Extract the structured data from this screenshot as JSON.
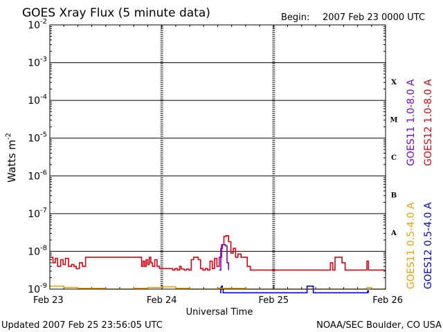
{
  "header": {
    "title": "GOES Xray Flux (5 minute data)",
    "begin_label": "Begin:",
    "begin_value": "2007 Feb 23 0000 UTC"
  },
  "footer": {
    "updated": "Updated 2007 Feb 25 23:56:05 UTC",
    "credit": "NOAA/SEC Boulder, CO USA"
  },
  "colors": {
    "goes12_long": "#e0000f",
    "goes11_long": "#7f00d0",
    "goes12_short": "#0000e0",
    "goes11_short": "#f0a000",
    "grid": "#000000"
  },
  "chart_data": {
    "type": "line",
    "title": "GOES Xray Flux (5 minute data)",
    "xlabel": "Universal Time",
    "ylabel": "Watts m",
    "ylabel_exp": "-2",
    "yscale": "log",
    "ylim": [
      1e-09,
      0.01
    ],
    "xlim": [
      "2007-02-23",
      "2007-02-26"
    ],
    "x_ticks": [
      {
        "label": "Feb 23",
        "date": "2007-02-23"
      },
      {
        "label": "Feb 24",
        "date": "2007-02-24"
      },
      {
        "label": "Feb 25",
        "date": "2007-02-25"
      },
      {
        "label": "Feb 26",
        "date": "2007-02-26"
      }
    ],
    "y_ticks": [
      {
        "base": "10",
        "exp": "-2",
        "value": 0.01
      },
      {
        "base": "10",
        "exp": "-3",
        "value": 0.001
      },
      {
        "base": "10",
        "exp": "-4",
        "value": 0.0001
      },
      {
        "base": "10",
        "exp": "-5",
        "value": 1e-05
      },
      {
        "base": "10",
        "exp": "-6",
        "value": 1e-06
      },
      {
        "base": "10",
        "exp": "-7",
        "value": 1e-07
      },
      {
        "base": "10",
        "exp": "-8",
        "value": 1e-08
      },
      {
        "base": "10",
        "exp": "-9",
        "value": 1e-09
      }
    ],
    "flare_classes": [
      {
        "label": "X",
        "value": 0.000316
      },
      {
        "label": "M",
        "value": 3.16e-05
      },
      {
        "label": "C",
        "value": 3.16e-06
      },
      {
        "label": "B",
        "value": 3.16e-07
      },
      {
        "label": "A",
        "value": 3.16e-08
      }
    ],
    "grid": true,
    "series": [
      {
        "name": "GOES12 1.0-8.0 A",
        "color": "#e0000f",
        "x": [
          "2007-02-23 00:00",
          "2007-02-23 00:40",
          "2007-02-23 01:10",
          "2007-02-23 01:40",
          "2007-02-23 02:20",
          "2007-02-23 02:50",
          "2007-02-23 03:20",
          "2007-02-23 04:00",
          "2007-02-23 04:40",
          "2007-02-23 05:10",
          "2007-02-23 05:40",
          "2007-02-23 06:20",
          "2007-02-23 07:00",
          "2007-02-23 07:40",
          "2007-02-23 08:20",
          "2007-02-23 09:00",
          "2007-02-23 09:50",
          "2007-02-23 10:30",
          "2007-02-23 11:10",
          "2007-02-23 12:00",
          "2007-02-23 12:30",
          "2007-02-23 13:10",
          "2007-02-23 14:00",
          "2007-02-23 15:00",
          "2007-02-23 16:00",
          "2007-02-23 17:00",
          "2007-02-23 18:00",
          "2007-02-23 19:00",
          "2007-02-23 19:40",
          "2007-02-23 20:00",
          "2007-02-23 20:20",
          "2007-02-23 20:40",
          "2007-02-23 21:00",
          "2007-02-23 21:20",
          "2007-02-23 21:40",
          "2007-02-23 22:00",
          "2007-02-23 22:30",
          "2007-02-23 23:00",
          "2007-02-23 23:30",
          "2007-02-24 00:30",
          "2007-02-24 01:10",
          "2007-02-24 01:40",
          "2007-02-24 02:20",
          "2007-02-24 02:50",
          "2007-02-24 03:20",
          "2007-02-24 03:50",
          "2007-02-24 04:10",
          "2007-02-24 04:50",
          "2007-02-24 05:20",
          "2007-02-24 05:50",
          "2007-02-24 06:20",
          "2007-02-24 06:50",
          "2007-02-24 07:20",
          "2007-02-24 07:50",
          "2007-02-24 08:20",
          "2007-02-24 08:50",
          "2007-02-24 09:20",
          "2007-02-24 09:50",
          "2007-02-24 10:20",
          "2007-02-24 10:50",
          "2007-02-24 11:20",
          "2007-02-24 11:50",
          "2007-02-24 12:20",
          "2007-02-24 12:50",
          "2007-02-24 13:20",
          "2007-02-24 13:50",
          "2007-02-24 14:20",
          "2007-02-24 14:50",
          "2007-02-24 15:20",
          "2007-02-24 15:50",
          "2007-02-24 16:20",
          "2007-02-24 17:00",
          "2007-02-24 17:40",
          "2007-02-24 18:20",
          "2007-02-24 19:00",
          "2007-02-24 19:40",
          "2007-02-24 20:20",
          "2007-02-24 21:00",
          "2007-02-24 21:40",
          "2007-02-24 22:20",
          "2007-02-24 23:00",
          "2007-02-24 23:40",
          "2007-02-25 00:20",
          "2007-02-25 01:00",
          "2007-02-25 02:00",
          "2007-02-25 03:00",
          "2007-02-25 04:00",
          "2007-02-25 05:00",
          "2007-02-25 06:00",
          "2007-02-25 07:00",
          "2007-02-25 08:00",
          "2007-02-25 09:00",
          "2007-02-25 10:00",
          "2007-02-25 10:40",
          "2007-02-25 11:10",
          "2007-02-25 11:40",
          "2007-02-25 12:10",
          "2007-02-25 12:40",
          "2007-02-25 13:10",
          "2007-02-25 13:40",
          "2007-02-25 14:10",
          "2007-02-25 14:40",
          "2007-02-25 15:20",
          "2007-02-25 16:00",
          "2007-02-25 17:00",
          "2007-02-25 18:00",
          "2007-02-25 19:00",
          "2007-02-25 19:40",
          "2007-02-25 20:00",
          "2007-02-25 20:20",
          "2007-02-25 21:00",
          "2007-02-25 22:00",
          "2007-02-25 23:00",
          "2007-02-25 23:55"
        ],
        "values": [
          7e-09,
          5e-09,
          6.5e-09,
          4e-09,
          6e-09,
          4.5e-09,
          6.5e-09,
          4e-09,
          4.5e-09,
          4e-09,
          3.5e-09,
          5e-09,
          4e-09,
          7e-09,
          7e-09,
          7e-09,
          7e-09,
          7e-09,
          7e-09,
          7e-09,
          7e-09,
          7e-09,
          7e-09,
          7e-09,
          7e-09,
          7e-09,
          7e-09,
          7e-09,
          4e-09,
          5.5e-09,
          4e-09,
          6e-09,
          4.5e-09,
          7e-09,
          5e-09,
          4e-09,
          6e-09,
          4e-09,
          3.5e-09,
          3.5e-09,
          3.5e-09,
          3.5e-09,
          3.2e-09,
          3.5e-09,
          3.2e-09,
          4e-09,
          3.4e-09,
          3.2e-09,
          3.4e-09,
          3.2e-09,
          6e-09,
          7e-09,
          7e-09,
          6e-09,
          3.5e-09,
          3.2e-09,
          3.5e-09,
          3.2e-09,
          5.5e-09,
          3.5e-09,
          6.5e-09,
          4e-09,
          7e-09,
          1.5e-08,
          2.5e-08,
          2.6e-08,
          1.8e-08,
          9e-09,
          1.2e-08,
          7e-09,
          8.5e-09,
          7e-09,
          7e-09,
          4e-09,
          3.2e-09,
          3.2e-09,
          3.2e-09,
          3.2e-09,
          3.2e-09,
          3.2e-09,
          3.2e-09,
          3.2e-09,
          3.2e-09,
          3.2e-09,
          3.2e-09,
          3.2e-09,
          3.2e-09,
          3.2e-09,
          3.2e-09,
          3.2e-09,
          3.2e-09,
          3.2e-09,
          3.2e-09,
          3.2e-09,
          3.2e-09,
          3.2e-09,
          5e-09,
          3.2e-09,
          7e-09,
          7e-09,
          7e-09,
          5e-09,
          3.2e-09,
          3.2e-09,
          3.2e-09,
          3.2e-09,
          3.2e-09,
          3.2e-09,
          5.5e-09,
          3.2e-09,
          3.2e-09,
          3.2e-09,
          3.2e-09,
          3.2e-09
        ]
      },
      {
        "name": "GOES11 1.0-8.0 A",
        "color": "#7f00d0",
        "x": [
          "2007-02-24 12:20",
          "2007-02-24 12:40",
          "2007-02-24 13:00",
          "2007-02-24 13:20",
          "2007-02-24 13:40",
          "2007-02-24 14:00",
          "2007-02-24 14:20"
        ],
        "values": [
          3.2e-09,
          1.2e-08,
          1.5e-08,
          1.5e-08,
          1.4e-08,
          5e-09,
          3.2e-09
        ]
      },
      {
        "name": "GOES12 0.5-4.0 A",
        "color": "#0000e0",
        "x": [
          "2007-02-24 12:30",
          "2007-02-24 12:40",
          "2007-02-24 12:50",
          "2007-02-24 13:00",
          "2007-02-24 13:10",
          "2007-02-25 07:00",
          "2007-02-25 07:10",
          "2007-02-25 07:30",
          "2007-02-25 08:00",
          "2007-02-25 08:20",
          "2007-02-25 08:30",
          "2007-02-25 20:00",
          "2007-02-25 20:10",
          "2007-02-25 20:20"
        ],
        "values": [
          8e-10,
          1.1e-09,
          1.2e-09,
          1e-09,
          8e-10,
          8e-10,
          1.2e-09,
          1.2e-09,
          1.2e-09,
          1.2e-09,
          8e-10,
          8e-10,
          9e-10,
          8e-10
        ]
      },
      {
        "name": "GOES11 0.5-4.0 A",
        "color": "#f0a000",
        "x": [
          "2007-02-23 00:00",
          "2007-02-23 03:00",
          "2007-02-23 06:00",
          "2007-02-23 09:00",
          "2007-02-23 12:00",
          "2007-02-23 15:00",
          "2007-02-23 18:00",
          "2007-02-23 21:00",
          "2007-02-24 00:00",
          "2007-02-24 03:00",
          "2007-02-24 06:00",
          "2007-02-24 09:00",
          "2007-02-24 12:00",
          "2007-02-24 15:00",
          "2007-02-24 18:00",
          "2007-02-24 21:00",
          "2007-02-25 00:00",
          "2007-02-25 03:00",
          "2007-02-25 06:00",
          "2007-02-25 09:00",
          "2007-02-25 12:00",
          "2007-02-25 15:00",
          "2007-02-25 18:00",
          "2007-02-25 20:00",
          "2007-02-25 21:00",
          "2007-02-25 23:55"
        ],
        "values": [
          1.2e-09,
          1.1e-09,
          1.05e-09,
          1.05e-09,
          1e-09,
          1e-09,
          1.05e-09,
          1.1e-09,
          1.15e-09,
          1.05e-09,
          1e-09,
          1e-09,
          1.05e-09,
          1.05e-09,
          1e-09,
          1e-09,
          1e-09,
          1e-09,
          1e-09,
          1e-09,
          1e-09,
          1e-09,
          1e-09,
          1.1e-09,
          1e-09,
          1.1e-09
        ]
      }
    ]
  }
}
